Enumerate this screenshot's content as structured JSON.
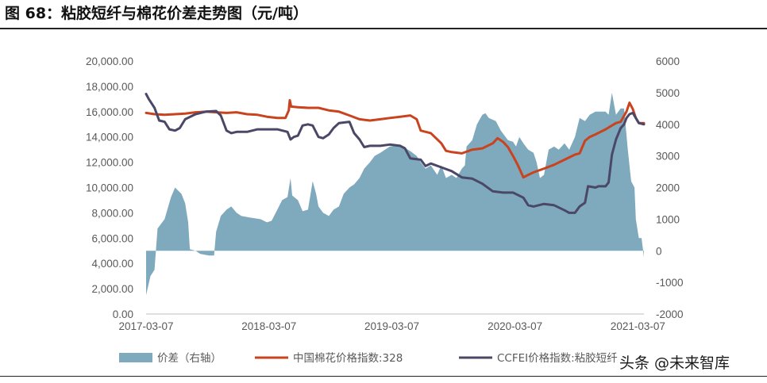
{
  "title": "图 68：粘胶短纤与棉花价差走势图（元/吨）",
  "watermark": "头条 @未来智库",
  "chart_data": {
    "type": "line",
    "x_ticks": [
      "2017-03-07",
      "2018-03-07",
      "2019-03-07",
      "2020-03-07",
      "2021-03-07"
    ],
    "x_range": [
      "2017-03-07",
      "2021-03-25"
    ],
    "y_left": {
      "min": 0,
      "max": 20000,
      "step": 2000,
      "tick_labels": [
        "0.00",
        "2,000.00",
        "4,000.00",
        "6,000.00",
        "8,000.00",
        "10,000.00",
        "12,000.00",
        "14,000.00",
        "16,000.00",
        "18,000.00",
        "20,000.00"
      ]
    },
    "y_right": {
      "min": -2000,
      "max": 6000,
      "step": 1000,
      "tick_labels": [
        "-2000",
        "-1000",
        "0",
        "1000",
        "2000",
        "3000",
        "4000",
        "5000",
        "6000"
      ]
    },
    "series": [
      {
        "name": "价差（右轴）",
        "kind": "area",
        "axis": "right",
        "color": "#7fa9bd",
        "points": [
          [
            "2017-03-07",
            -1400
          ],
          [
            "2017-03-20",
            -800
          ],
          [
            "2017-04-01",
            -600
          ],
          [
            "2017-04-10",
            700
          ],
          [
            "2017-05-01",
            1000
          ],
          [
            "2017-05-20",
            1700
          ],
          [
            "2017-06-01",
            2000
          ],
          [
            "2017-06-20",
            1800
          ],
          [
            "2017-07-01",
            1500
          ],
          [
            "2017-07-10",
            900
          ],
          [
            "2017-07-15",
            50
          ],
          [
            "2017-08-01",
            0
          ],
          [
            "2017-08-15",
            -100
          ],
          [
            "2017-09-10",
            -150
          ],
          [
            "2017-09-25",
            -150
          ],
          [
            "2017-10-01",
            600
          ],
          [
            "2017-10-15",
            1100
          ],
          [
            "2017-11-01",
            1300
          ],
          [
            "2017-11-15",
            1400
          ],
          [
            "2017-12-01",
            1200
          ],
          [
            "2017-12-15",
            1100
          ],
          [
            "2018-01-10",
            1050
          ],
          [
            "2018-02-10",
            1000
          ],
          [
            "2018-03-01",
            900
          ],
          [
            "2018-03-15",
            950
          ],
          [
            "2018-04-01",
            1300
          ],
          [
            "2018-04-15",
            1600
          ],
          [
            "2018-05-01",
            1700
          ],
          [
            "2018-05-10",
            2300
          ],
          [
            "2018-05-15",
            1750
          ],
          [
            "2018-06-01",
            1600
          ],
          [
            "2018-06-15",
            1250
          ],
          [
            "2018-07-01",
            1300
          ],
          [
            "2018-07-15",
            2200
          ],
          [
            "2018-07-25",
            1800
          ],
          [
            "2018-08-01",
            1400
          ],
          [
            "2018-08-15",
            1200
          ],
          [
            "2018-09-01",
            1100
          ],
          [
            "2018-09-15",
            1300
          ],
          [
            "2018-10-01",
            1400
          ],
          [
            "2018-10-15",
            1800
          ],
          [
            "2018-11-01",
            2000
          ],
          [
            "2018-11-15",
            2100
          ],
          [
            "2018-12-01",
            2300
          ],
          [
            "2018-12-15",
            2600
          ],
          [
            "2019-01-01",
            2800
          ],
          [
            "2019-01-15",
            3000
          ],
          [
            "2019-02-01",
            3100
          ],
          [
            "2019-02-15",
            3200
          ],
          [
            "2019-03-01",
            3300
          ],
          [
            "2019-04-01",
            3350
          ],
          [
            "2019-05-01",
            3150
          ],
          [
            "2019-05-20",
            3000
          ],
          [
            "2019-06-01",
            2800
          ],
          [
            "2019-06-15",
            2600
          ],
          [
            "2019-07-01",
            2700
          ],
          [
            "2019-07-20",
            2400
          ],
          [
            "2019-08-01",
            2700
          ],
          [
            "2019-08-15",
            2300
          ],
          [
            "2019-09-01",
            2400
          ],
          [
            "2019-09-15",
            2300
          ],
          [
            "2019-10-01",
            2600
          ],
          [
            "2019-10-10",
            2700
          ],
          [
            "2019-10-15",
            3300
          ],
          [
            "2019-11-01",
            3500
          ],
          [
            "2019-11-15",
            4000
          ],
          [
            "2019-12-01",
            4300
          ],
          [
            "2019-12-10",
            4350
          ],
          [
            "2019-12-20",
            4200
          ],
          [
            "2020-01-10",
            4100
          ],
          [
            "2020-01-25",
            3800
          ],
          [
            "2020-02-15",
            3500
          ],
          [
            "2020-03-01",
            3450
          ],
          [
            "2020-03-10",
            3300
          ],
          [
            "2020-03-20",
            3600
          ],
          [
            "2020-04-01",
            3400
          ],
          [
            "2020-04-15",
            3200
          ],
          [
            "2020-05-01",
            3100
          ],
          [
            "2020-05-10",
            2800
          ],
          [
            "2020-05-20",
            2300
          ],
          [
            "2020-06-01",
            2400
          ],
          [
            "2020-06-15",
            3200
          ],
          [
            "2020-07-01",
            3300
          ],
          [
            "2020-07-15",
            3200
          ],
          [
            "2020-08-01",
            3400
          ],
          [
            "2020-08-15",
            3200
          ],
          [
            "2020-09-01",
            3600
          ],
          [
            "2020-09-15",
            4200
          ],
          [
            "2020-10-01",
            4100
          ],
          [
            "2020-10-15",
            4300
          ],
          [
            "2020-11-01",
            4400
          ],
          [
            "2020-11-15",
            4400
          ],
          [
            "2020-12-01",
            4400
          ],
          [
            "2020-12-10",
            4300
          ],
          [
            "2020-12-20",
            5000
          ],
          [
            "2021-01-01",
            4300
          ],
          [
            "2021-01-15",
            4500
          ],
          [
            "2021-01-25",
            4500
          ],
          [
            "2021-02-05",
            3200
          ],
          [
            "2021-02-15",
            2200
          ],
          [
            "2021-02-25",
            2000
          ],
          [
            "2021-03-01",
            1000
          ],
          [
            "2021-03-10",
            400
          ],
          [
            "2021-03-18",
            400
          ],
          [
            "2021-03-25",
            -200
          ]
        ]
      },
      {
        "name": "中国棉花价格指数:328",
        "kind": "line",
        "axis": "left",
        "color": "#c8431e",
        "points": [
          [
            "2017-03-07",
            15900
          ],
          [
            "2017-04-01",
            15800
          ],
          [
            "2017-05-01",
            15750
          ],
          [
            "2017-06-01",
            15800
          ],
          [
            "2017-07-01",
            15850
          ],
          [
            "2017-08-01",
            15950
          ],
          [
            "2017-09-01",
            16000
          ],
          [
            "2017-10-01",
            15950
          ],
          [
            "2017-11-01",
            15900
          ],
          [
            "2017-12-01",
            15950
          ],
          [
            "2018-01-01",
            15800
          ],
          [
            "2018-02-01",
            15750
          ],
          [
            "2018-03-01",
            15600
          ],
          [
            "2018-04-01",
            15500
          ],
          [
            "2018-04-25",
            15500
          ],
          [
            "2018-05-05",
            16100
          ],
          [
            "2018-05-08",
            16900
          ],
          [
            "2018-05-12",
            16400
          ],
          [
            "2018-06-01",
            16350
          ],
          [
            "2018-07-01",
            16300
          ],
          [
            "2018-08-01",
            16300
          ],
          [
            "2018-09-01",
            16100
          ],
          [
            "2018-10-01",
            16000
          ],
          [
            "2018-11-01",
            15700
          ],
          [
            "2018-12-01",
            15400
          ],
          [
            "2019-01-01",
            15300
          ],
          [
            "2019-02-01",
            15400
          ],
          [
            "2019-03-01",
            15500
          ],
          [
            "2019-04-01",
            15600
          ],
          [
            "2019-05-01",
            15700
          ],
          [
            "2019-05-20",
            15400
          ],
          [
            "2019-06-01",
            14500
          ],
          [
            "2019-07-01",
            14300
          ],
          [
            "2019-08-01",
            13500
          ],
          [
            "2019-08-15",
            12900
          ],
          [
            "2019-09-01",
            12800
          ],
          [
            "2019-10-01",
            12700
          ],
          [
            "2019-11-01",
            13000
          ],
          [
            "2019-12-01",
            13100
          ],
          [
            "2020-01-01",
            13500
          ],
          [
            "2020-01-15",
            13900
          ],
          [
            "2020-02-01",
            13600
          ],
          [
            "2020-02-15",
            13200
          ],
          [
            "2020-03-01",
            12500
          ],
          [
            "2020-03-15",
            11800
          ],
          [
            "2020-04-01",
            10800
          ],
          [
            "2020-04-15",
            11000
          ],
          [
            "2020-05-01",
            11200
          ],
          [
            "2020-06-01",
            11500
          ],
          [
            "2020-07-01",
            11800
          ],
          [
            "2020-08-01",
            12200
          ],
          [
            "2020-09-01",
            12600
          ],
          [
            "2020-09-15",
            12700
          ],
          [
            "2020-10-01",
            13700
          ],
          [
            "2020-10-15",
            14000
          ],
          [
            "2020-11-01",
            14200
          ],
          [
            "2020-12-01",
            14600
          ],
          [
            "2021-01-01",
            15100
          ],
          [
            "2021-01-15",
            15200
          ],
          [
            "2021-02-01",
            16000
          ],
          [
            "2021-02-10",
            16700
          ],
          [
            "2021-02-20",
            16200
          ],
          [
            "2021-03-01",
            15500
          ],
          [
            "2021-03-10",
            15100
          ],
          [
            "2021-03-25",
            15100
          ]
        ]
      },
      {
        "name": "CCFEI价格指数:粘胶短纤",
        "kind": "line",
        "axis": "left",
        "color": "#4a4866",
        "points": [
          [
            "2017-03-07",
            17400
          ],
          [
            "2017-03-15",
            17000
          ],
          [
            "2017-04-01",
            16300
          ],
          [
            "2017-04-15",
            15300
          ],
          [
            "2017-05-01",
            15200
          ],
          [
            "2017-05-15",
            14600
          ],
          [
            "2017-06-01",
            14500
          ],
          [
            "2017-06-15",
            14700
          ],
          [
            "2017-07-01",
            15400
          ],
          [
            "2017-08-01",
            15800
          ],
          [
            "2017-09-01",
            16000
          ],
          [
            "2017-10-01",
            16050
          ],
          [
            "2017-10-15",
            15700
          ],
          [
            "2017-11-01",
            14500
          ],
          [
            "2017-11-15",
            14300
          ],
          [
            "2017-12-01",
            14400
          ],
          [
            "2018-01-01",
            14400
          ],
          [
            "2018-02-01",
            14600
          ],
          [
            "2018-03-01",
            14600
          ],
          [
            "2018-04-01",
            14600
          ],
          [
            "2018-05-01",
            14400
          ],
          [
            "2018-05-10",
            13800
          ],
          [
            "2018-05-20",
            14000
          ],
          [
            "2018-06-01",
            14100
          ],
          [
            "2018-06-15",
            14900
          ],
          [
            "2018-07-01",
            15000
          ],
          [
            "2018-07-15",
            14900
          ],
          [
            "2018-08-01",
            14000
          ],
          [
            "2018-08-15",
            13900
          ],
          [
            "2018-09-01",
            14200
          ],
          [
            "2018-09-15",
            14700
          ],
          [
            "2018-10-01",
            15100
          ],
          [
            "2018-11-01",
            15200
          ],
          [
            "2018-11-15",
            14300
          ],
          [
            "2018-12-01",
            13800
          ],
          [
            "2018-12-15",
            13200
          ],
          [
            "2019-01-01",
            13300
          ],
          [
            "2019-02-01",
            13300
          ],
          [
            "2019-03-01",
            13400
          ],
          [
            "2019-04-01",
            13300
          ],
          [
            "2019-04-15",
            13100
          ],
          [
            "2019-05-01",
            12300
          ],
          [
            "2019-06-01",
            12200
          ],
          [
            "2019-06-15",
            11700
          ],
          [
            "2019-07-01",
            11900
          ],
          [
            "2019-08-01",
            11600
          ],
          [
            "2019-09-01",
            11300
          ],
          [
            "2019-10-01",
            10800
          ],
          [
            "2019-11-01",
            10700
          ],
          [
            "2019-12-01",
            10300
          ],
          [
            "2020-01-01",
            9700
          ],
          [
            "2020-02-01",
            9600
          ],
          [
            "2020-03-01",
            9600
          ],
          [
            "2020-04-01",
            9200
          ],
          [
            "2020-04-15",
            8600
          ],
          [
            "2020-05-01",
            8500
          ],
          [
            "2020-06-01",
            8700
          ],
          [
            "2020-07-01",
            8600
          ],
          [
            "2020-08-01",
            8200
          ],
          [
            "2020-08-15",
            8000
          ],
          [
            "2020-09-01",
            8000
          ],
          [
            "2020-09-15",
            8500
          ],
          [
            "2020-10-01",
            8800
          ],
          [
            "2020-10-10",
            10100
          ],
          [
            "2020-11-01",
            10000
          ],
          [
            "2020-11-10",
            10100
          ],
          [
            "2020-12-01",
            10100
          ],
          [
            "2020-12-10",
            10400
          ],
          [
            "2020-12-20",
            12600
          ],
          [
            "2021-01-01",
            13800
          ],
          [
            "2021-01-15",
            14700
          ],
          [
            "2021-01-25",
            15000
          ],
          [
            "2021-02-01",
            15500
          ],
          [
            "2021-02-10",
            15800
          ],
          [
            "2021-02-20",
            15900
          ],
          [
            "2021-03-01",
            15500
          ],
          [
            "2021-03-10",
            15100
          ],
          [
            "2021-03-25",
            15000
          ]
        ]
      }
    ],
    "legend_position": "bottom",
    "grid": false
  }
}
